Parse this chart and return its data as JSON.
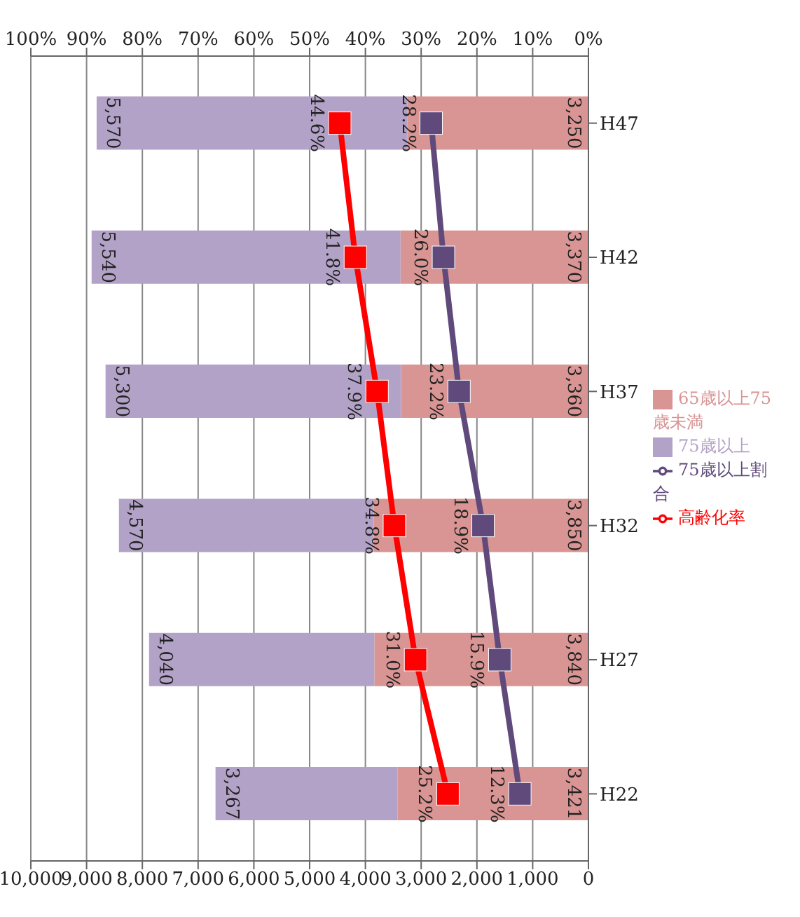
{
  "chart_data": {
    "type": "bar",
    "stacked": true,
    "orientation": "horizontal",
    "categories": [
      "H47",
      "H42",
      "H37",
      "H32",
      "H27",
      "H22"
    ],
    "series": [
      {
        "name": "65歳以上75歳未満",
        "color": "#d99594",
        "values": [
          3250,
          3370,
          3360,
          3850,
          3840,
          3421
        ],
        "value_labels": [
          "3,250",
          "3,370",
          "3,360",
          "3,850",
          "3,840",
          "3,421"
        ]
      },
      {
        "name": "75歳以上",
        "color": "#b3a2c7",
        "values": [
          5570,
          5540,
          5300,
          4570,
          4040,
          3267
        ],
        "value_labels": [
          "5,570",
          "5,540",
          "5,300",
          "4,570",
          "4,040",
          "3,267"
        ]
      },
      {
        "name": "75歳以上割合",
        "type": "line",
        "axis": "x2",
        "color": "#604a7b",
        "marker": "square",
        "values": [
          28.2,
          26.0,
          23.2,
          18.9,
          15.9,
          12.3
        ],
        "value_labels": [
          "28.2%",
          "26.0%",
          "23.2%",
          "18.9%",
          "15.9%",
          "12.3%"
        ]
      },
      {
        "name": "高齢化率",
        "type": "line",
        "axis": "x2",
        "color": "#ff0000",
        "marker": "square",
        "values": [
          44.6,
          41.8,
          37.9,
          34.8,
          31.0,
          25.2
        ],
        "value_labels": [
          "44.6%",
          "41.8%",
          "37.9%",
          "34.8%",
          "31.0%",
          "25.2%"
        ]
      }
    ],
    "xlim": [
      10000,
      0
    ],
    "xticks": [
      {
        "value": 0,
        "label": "0"
      },
      {
        "value": 1000,
        "label": "1,000"
      },
      {
        "value": 2000,
        "label": "2,000"
      },
      {
        "value": 3000,
        "label": "3,000"
      },
      {
        "value": 4000,
        "label": "4,000"
      },
      {
        "value": 5000,
        "label": "5,000"
      },
      {
        "value": 6000,
        "label": "6,000"
      },
      {
        "value": 7000,
        "label": "7,000"
      },
      {
        "value": 8000,
        "label": "8,000"
      },
      {
        "value": 9000,
        "label": "9,000"
      },
      {
        "value": 10000,
        "label": "10,000"
      }
    ],
    "x2lim": [
      100,
      0
    ],
    "x2ticks": [
      {
        "value": 0,
        "label": "0%"
      },
      {
        "value": 10,
        "label": "10%"
      },
      {
        "value": 20,
        "label": "20%"
      },
      {
        "value": 30,
        "label": "30%"
      },
      {
        "value": 40,
        "label": "40%"
      },
      {
        "value": 50,
        "label": "50%"
      },
      {
        "value": 60,
        "label": "60%"
      },
      {
        "value": 70,
        "label": "70%"
      },
      {
        "value": 80,
        "label": "80%"
      },
      {
        "value": 90,
        "label": "90%"
      },
      {
        "value": 100,
        "label": "100%"
      }
    ],
    "grid": "x",
    "legend": "right"
  }
}
